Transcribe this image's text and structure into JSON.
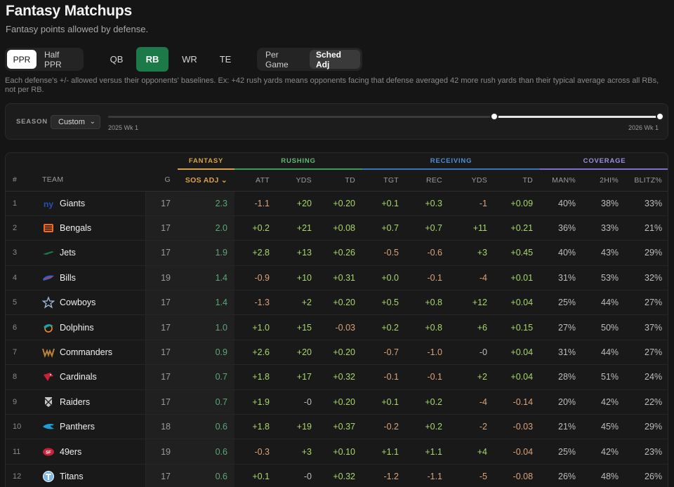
{
  "page": {
    "title": "Fantasy Matchups",
    "subtitle": "Fantasy points allowed by defense.",
    "note": "Each defense's +/- allowed versus their opponents' baselines. Ex: +42 rush yards means opponents facing that defense averaged 42 more rush yards than their typical average across all RBs, not per RB."
  },
  "scoring": {
    "options": [
      "PPR",
      "Half PPR"
    ],
    "active": "PPR"
  },
  "positions": {
    "options": [
      "QB",
      "RB",
      "WR",
      "TE"
    ],
    "active": "RB"
  },
  "mode": {
    "options": [
      "Per Game",
      "Sched Adj"
    ],
    "active": "Sched Adj"
  },
  "season": {
    "label": "SEASON",
    "select": "Custom",
    "range_start_label": "2025 Wk 1",
    "range_end_label": "2026 Wk 1",
    "selected_start_fraction": 0.7,
    "selected_end_fraction": 1.0
  },
  "table": {
    "groups": {
      "fantasy": "FANTASY",
      "rushing": "RUSHING",
      "receiving": "RECEIVING",
      "coverage": "COVERAGE"
    },
    "headers": {
      "rank": "#",
      "team": "TEAM",
      "g": "G",
      "sos": "SOS ADJ",
      "att": "ATT",
      "rush_yds": "YDS",
      "rush_td": "TD",
      "tgt": "TGT",
      "rec": "REC",
      "rec_yds": "YDS",
      "rec_td": "TD",
      "man": "MAN%",
      "two_hi": "2HI%",
      "blitz": "BLITZ%"
    },
    "rows": [
      {
        "rank": "1",
        "team": "Giants",
        "logo": "giants-logo",
        "g": "17",
        "sos": "2.3",
        "att": "-1.1",
        "rush_yds": "+20",
        "rush_td": "+0.20",
        "tgt": "+0.1",
        "rec": "+0.3",
        "rec_yds": "-1",
        "rec_td": "+0.09",
        "man": "40%",
        "two_hi": "38%",
        "blitz": "33%"
      },
      {
        "rank": "2",
        "team": "Bengals",
        "logo": "bengals-logo",
        "g": "17",
        "sos": "2.0",
        "att": "+0.2",
        "rush_yds": "+21",
        "rush_td": "+0.08",
        "tgt": "+0.7",
        "rec": "+0.7",
        "rec_yds": "+11",
        "rec_td": "+0.21",
        "man": "36%",
        "two_hi": "33%",
        "blitz": "21%"
      },
      {
        "rank": "3",
        "team": "Jets",
        "logo": "jets-logo",
        "g": "17",
        "sos": "1.9",
        "att": "+2.8",
        "rush_yds": "+13",
        "rush_td": "+0.26",
        "tgt": "-0.5",
        "rec": "-0.6",
        "rec_yds": "+3",
        "rec_td": "+0.45",
        "man": "40%",
        "two_hi": "43%",
        "blitz": "29%"
      },
      {
        "rank": "4",
        "team": "Bills",
        "logo": "bills-logo",
        "g": "19",
        "sos": "1.4",
        "att": "-0.9",
        "rush_yds": "+10",
        "rush_td": "+0.31",
        "tgt": "+0.0",
        "rec": "-0.1",
        "rec_yds": "-4",
        "rec_td": "+0.01",
        "man": "31%",
        "two_hi": "53%",
        "blitz": "32%"
      },
      {
        "rank": "5",
        "team": "Cowboys",
        "logo": "cowboys-logo",
        "g": "17",
        "sos": "1.4",
        "att": "-1.3",
        "rush_yds": "+2",
        "rush_td": "+0.20",
        "tgt": "+0.5",
        "rec": "+0.8",
        "rec_yds": "+12",
        "rec_td": "+0.04",
        "man": "25%",
        "two_hi": "44%",
        "blitz": "27%"
      },
      {
        "rank": "6",
        "team": "Dolphins",
        "logo": "dolphins-logo",
        "g": "17",
        "sos": "1.0",
        "att": "+1.0",
        "rush_yds": "+15",
        "rush_td": "-0.03",
        "tgt": "+0.2",
        "rec": "+0.8",
        "rec_yds": "+6",
        "rec_td": "+0.15",
        "man": "27%",
        "two_hi": "50%",
        "blitz": "37%"
      },
      {
        "rank": "7",
        "team": "Commanders",
        "logo": "commanders-logo",
        "g": "17",
        "sos": "0.9",
        "att": "+2.6",
        "rush_yds": "+20",
        "rush_td": "+0.20",
        "tgt": "-0.7",
        "rec": "-1.0",
        "rec_yds": "-0",
        "rec_td": "+0.04",
        "man": "31%",
        "two_hi": "44%",
        "blitz": "27%"
      },
      {
        "rank": "8",
        "team": "Cardinals",
        "logo": "cardinals-logo",
        "g": "17",
        "sos": "0.7",
        "att": "+1.8",
        "rush_yds": "+17",
        "rush_td": "+0.32",
        "tgt": "-0.1",
        "rec": "-0.1",
        "rec_yds": "+2",
        "rec_td": "+0.04",
        "man": "28%",
        "two_hi": "51%",
        "blitz": "24%"
      },
      {
        "rank": "9",
        "team": "Raiders",
        "logo": "raiders-logo",
        "g": "17",
        "sos": "0.7",
        "att": "+1.9",
        "rush_yds": "-0",
        "rush_td": "+0.20",
        "tgt": "+0.1",
        "rec": "+0.2",
        "rec_yds": "-4",
        "rec_td": "-0.14",
        "man": "20%",
        "two_hi": "42%",
        "blitz": "22%"
      },
      {
        "rank": "10",
        "team": "Panthers",
        "logo": "panthers-logo",
        "g": "18",
        "sos": "0.6",
        "att": "+1.8",
        "rush_yds": "+19",
        "rush_td": "+0.37",
        "tgt": "-0.2",
        "rec": "+0.2",
        "rec_yds": "-2",
        "rec_td": "-0.03",
        "man": "21%",
        "two_hi": "45%",
        "blitz": "29%"
      },
      {
        "rank": "11",
        "team": "49ers",
        "logo": "49ers-logo",
        "g": "19",
        "sos": "0.6",
        "att": "-0.3",
        "rush_yds": "+3",
        "rush_td": "+0.10",
        "tgt": "+1.1",
        "rec": "+1.1",
        "rec_yds": "+4",
        "rec_td": "-0.04",
        "man": "25%",
        "two_hi": "42%",
        "blitz": "23%"
      },
      {
        "rank": "12",
        "team": "Titans",
        "logo": "titans-logo",
        "g": "17",
        "sos": "0.6",
        "att": "+0.1",
        "rush_yds": "-0",
        "rush_td": "+0.32",
        "tgt": "-1.2",
        "rec": "-1.1",
        "rec_yds": "-5",
        "rec_td": "-0.08",
        "man": "26%",
        "two_hi": "48%",
        "blitz": "26%"
      }
    ]
  },
  "colors": {
    "accent_green": "#1b7a48",
    "fantasy": "#d8a24a",
    "rushing": "#5fb878",
    "receiving": "#4e8ed4",
    "coverage": "#9b8ee0",
    "positive": "#a9d66b",
    "negative": "#d9a37a"
  }
}
